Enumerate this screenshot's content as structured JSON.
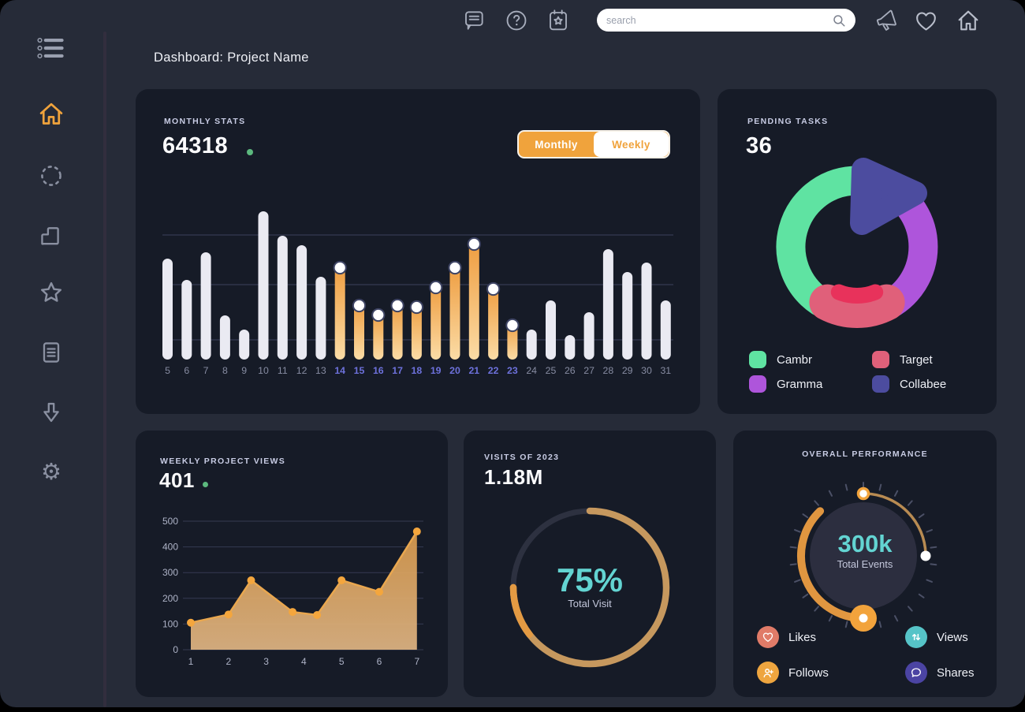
{
  "window": {
    "title": "Dashboard: Project Name"
  },
  "topbar": {
    "search_placeholder": "search",
    "icons": [
      "chat-icon",
      "help-icon",
      "calendar-star-icon",
      "search-icon",
      "megaphone-icon",
      "heart-icon",
      "home-icon"
    ]
  },
  "sidebar": {
    "icons": [
      "menu-list-icon",
      "home-icon-active",
      "loader-icon",
      "storage-icon",
      "star-icon",
      "notes-icon",
      "download-icon",
      "gear-icon"
    ],
    "active_color": "#F0A33C"
  },
  "cards": {
    "monthly_stats": {
      "label": "MONTHLY STATS",
      "value": "64318",
      "toggle": {
        "monthly": "Monthly",
        "weekly": "Weekly",
        "selected": "Monthly"
      }
    },
    "pending_tasks": {
      "label": "PENDING TASKS",
      "value": "36",
      "legend": [
        {
          "label": "Cambr",
          "color": "#5FE3A2"
        },
        {
          "label": "Target",
          "color": "#E0607A"
        },
        {
          "label": "Gramma",
          "color": "#AE55DB"
        },
        {
          "label": "Collabee",
          "color": "#4C4C9F"
        }
      ]
    },
    "weekly_views": {
      "label": "WEEKLY PROJECT VIEWS",
      "value": "401"
    },
    "visits": {
      "label": "VISITS OF 2023",
      "value": "1.18M",
      "percent": "75%",
      "caption": "Total Visit"
    },
    "overall": {
      "label": "OVERALL PERFORMANCE",
      "value": "300k",
      "caption": "Total Events",
      "legend": [
        {
          "label": "Likes",
          "color": "#E07B68",
          "icon": "heart-icon"
        },
        {
          "label": "Views",
          "color": "#56C4C8",
          "icon": "arrows-up-down-icon"
        },
        {
          "label": "Follows",
          "color": "#EEA53F",
          "icon": "person-plus-icon"
        },
        {
          "label": "Shares",
          "color": "#4B44A3",
          "icon": "chat-bubble-icon"
        }
      ]
    }
  },
  "chart_data": [
    {
      "type": "bar",
      "title": "Monthly Stats",
      "categories": [
        5,
        6,
        7,
        8,
        9,
        10,
        11,
        12,
        13,
        14,
        15,
        16,
        17,
        18,
        19,
        20,
        21,
        22,
        23,
        24,
        25,
        26,
        27,
        28,
        29,
        30,
        31
      ],
      "values": [
        128,
        101,
        136,
        56,
        38,
        188,
        157,
        145,
        105,
        123,
        75,
        63,
        75,
        73,
        98,
        123,
        153,
        96,
        50,
        38,
        75,
        31,
        60,
        140,
        111,
        123,
        75
      ],
      "highlight_days": [
        14,
        15,
        16,
        17,
        18,
        19,
        20,
        21,
        22,
        23
      ],
      "ylim": [
        0,
        200
      ],
      "grid": "3 horizontal lines, no y labels",
      "bar_color": "#EAEAF2",
      "highlight_gradient": [
        "#EE9B3D",
        "#FBDCA6"
      ],
      "tick_color": "#878CA2",
      "tick_highlight_color": "#6D71DB"
    },
    {
      "type": "pie",
      "title": "Pending Tasks",
      "total": 36,
      "slices": [
        {
          "label": "Cambr",
          "percent": 40,
          "color": "#5FE3A2"
        },
        {
          "label": "Gramma",
          "percent": 28,
          "color": "#AE55DB"
        },
        {
          "label": "Target",
          "percent": 14,
          "color": "#E0607A"
        },
        {
          "label": "Collabee",
          "percent": 18,
          "color": "#4C4C9F"
        }
      ],
      "inner_accent": "#E8325B",
      "legend_position": "bottom"
    },
    {
      "type": "area",
      "title": "Weekly Project Views",
      "x": [
        1,
        2,
        2.6,
        3.7,
        4.35,
        5,
        6,
        7
      ],
      "values": [
        105,
        137,
        270,
        147,
        135,
        270,
        225,
        460
      ],
      "xticks": [
        1,
        2,
        3,
        4,
        5,
        6,
        7
      ],
      "yticks": [
        0,
        100,
        200,
        300,
        400,
        500
      ],
      "ylim": [
        0,
        500
      ],
      "grid": "horizontal gridlines at each ytick",
      "line_color": "#E9A74F",
      "dot_color": "#F4A63D",
      "fill_gradient": [
        "#DA9B4D",
        "#E0B583"
      ]
    },
    {
      "type": "progress-ring",
      "title": "Visits of 2023",
      "percent": 75,
      "start": "12 o'clock, clockwise",
      "ring_color": "#C6985E",
      "ring_end_color": "#E39A43",
      "track_color": "#2D3140"
    },
    {
      "type": "gauge",
      "title": "Overall Performance",
      "value": "300k",
      "caption": "Total Events",
      "thin_arc": {
        "from_clock_deg": 2,
        "to_clock_deg": 88,
        "color": "#B88B52"
      },
      "thick_arc": {
        "from_clock_deg": 180,
        "to_clock_deg": 316,
        "color": "#E09640"
      },
      "knob_color": "#F2A33C",
      "tick_color": "#4B5066",
      "inner_circle_color": "#2C2E3F"
    }
  ]
}
